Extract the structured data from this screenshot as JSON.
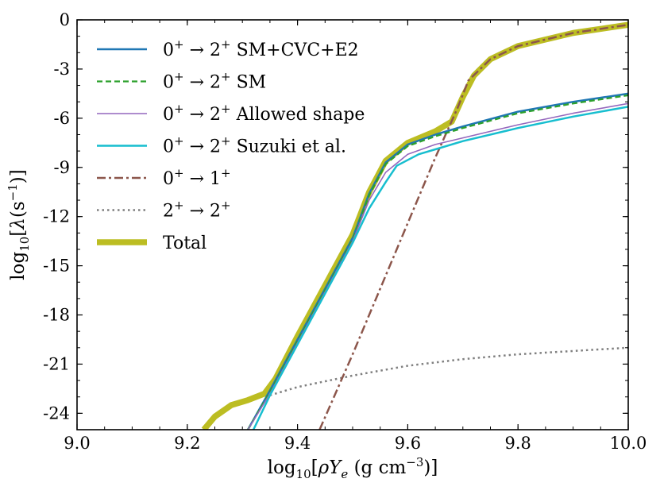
{
  "chart_data": {
    "type": "line",
    "title": "",
    "xlabel": "log10[ρYe (g cm^-3)]",
    "ylabel": "log10[λ(s^-1)]",
    "xlim": [
      9.0,
      10.0
    ],
    "ylim": [
      -25,
      0
    ],
    "xticks": [
      "9.0",
      "9.2",
      "9.4",
      "9.6",
      "9.8",
      "10.0"
    ],
    "yticks": [
      "0",
      "-3",
      "-6",
      "-9",
      "-12",
      "-15",
      "-18",
      "-21",
      "-24"
    ],
    "legend_position": "top-left",
    "series": [
      {
        "name": "0⁺ → 2⁺ SM+CVC+E2",
        "color": "#1f77b4",
        "style": "solid",
        "x": [
          9.31,
          9.35,
          9.4,
          9.45,
          9.5,
          9.53,
          9.56,
          9.6,
          9.65,
          9.7,
          9.8,
          9.9,
          10.0
        ],
        "y": [
          -25.0,
          -22.6,
          -19.5,
          -16.4,
          -13.3,
          -10.6,
          -8.7,
          -7.6,
          -7.0,
          -6.5,
          -5.6,
          -5.0,
          -4.5
        ]
      },
      {
        "name": "0⁺ → 2⁺ SM",
        "color": "#2ca02c",
        "style": "dashed",
        "x": [
          9.31,
          9.35,
          9.4,
          9.45,
          9.5,
          9.53,
          9.56,
          9.6,
          9.65,
          9.7,
          9.8,
          9.9,
          10.0
        ],
        "y": [
          -25.0,
          -22.7,
          -19.6,
          -16.5,
          -13.4,
          -10.7,
          -8.8,
          -7.7,
          -7.1,
          -6.6,
          -5.7,
          -5.1,
          -4.6
        ]
      },
      {
        "name": "0⁺ → 2⁺ Allowed shape",
        "color": "#9467bd",
        "style": "solid-thin",
        "x": [
          9.31,
          9.35,
          9.4,
          9.45,
          9.5,
          9.53,
          9.56,
          9.6,
          9.65,
          9.7,
          9.8,
          9.9,
          10.0
        ],
        "y": [
          -25.0,
          -22.8,
          -19.7,
          -16.6,
          -13.5,
          -11.0,
          -9.3,
          -8.2,
          -7.6,
          -7.2,
          -6.4,
          -5.7,
          -5.1
        ]
      },
      {
        "name": "0⁺ → 2⁺ Suzuki et al.",
        "color": "#17becf",
        "style": "solid",
        "x": [
          9.32,
          9.35,
          9.4,
          9.45,
          9.5,
          9.53,
          9.56,
          9.58,
          9.62,
          9.66,
          9.7,
          9.8,
          9.9,
          10.0
        ],
        "y": [
          -25.0,
          -22.9,
          -19.8,
          -16.7,
          -13.6,
          -11.5,
          -9.9,
          -8.9,
          -8.2,
          -7.8,
          -7.4,
          -6.6,
          -5.9,
          -5.3
        ]
      },
      {
        "name": "0⁺ → 1⁺",
        "color": "#8c564b",
        "style": "dashdot",
        "x": [
          9.44,
          9.5,
          9.55,
          9.6,
          9.65,
          9.67,
          9.69,
          9.71,
          9.75,
          9.8,
          9.9,
          10.0
        ],
        "y": [
          -25.0,
          -20.4,
          -16.4,
          -12.4,
          -8.4,
          -6.9,
          -5.4,
          -3.7,
          -2.4,
          -1.6,
          -0.8,
          -0.3
        ]
      },
      {
        "name": "2⁺ → 2⁺",
        "color": "#7f7f7f",
        "style": "dotted",
        "x": [
          9.35,
          9.4,
          9.5,
          9.6,
          9.7,
          9.8,
          9.9,
          10.0
        ],
        "y": [
          -22.9,
          -22.4,
          -21.7,
          -21.1,
          -20.7,
          -20.4,
          -20.2,
          -20.0
        ]
      },
      {
        "name": "Total",
        "color": "#bcbd22",
        "style": "thick",
        "x": [
          9.23,
          9.25,
          9.28,
          9.31,
          9.34,
          9.36,
          9.4,
          9.45,
          9.5,
          9.53,
          9.56,
          9.6,
          9.65,
          9.68,
          9.7,
          9.72,
          9.75,
          9.8,
          9.9,
          10.0
        ],
        "y": [
          -25.0,
          -24.2,
          -23.5,
          -23.2,
          -22.8,
          -21.9,
          -19.3,
          -16.2,
          -13.1,
          -10.5,
          -8.6,
          -7.5,
          -6.8,
          -6.2,
          -4.7,
          -3.4,
          -2.4,
          -1.6,
          -0.8,
          -0.3
        ]
      }
    ]
  }
}
